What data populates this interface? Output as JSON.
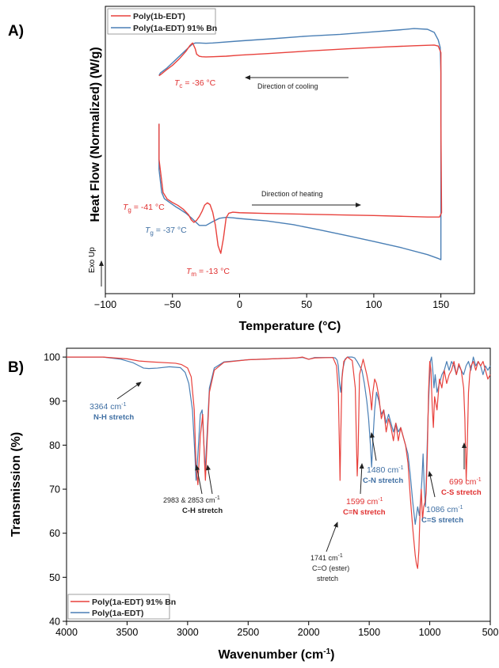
{
  "colors": {
    "red": "#e8413c",
    "blue": "#4a7fb5",
    "axis": "#000000"
  },
  "chart_data": [
    {
      "panel_label": "A)",
      "type": "line",
      "xlabel": "Temperature (°C)",
      "ylabel": "Heat Flow (Normalized) (W/g)",
      "exo_label": "Exo Up",
      "xlim": [
        -100,
        175
      ],
      "ylim": [
        0,
        1
      ],
      "xticks": [
        -100,
        -50,
        0,
        50,
        100,
        150
      ],
      "yticks_shown": false,
      "legend": {
        "placement": "top-left",
        "entries": [
          "Poly(1b-EDT)",
          "Poly(1a-EDT) 91% Bn"
        ]
      },
      "series": [
        {
          "name": "Poly(1b-EDT)",
          "color": "red",
          "x": [
            -60,
            -58,
            -55,
            -50,
            -45,
            -40,
            -37,
            -35,
            -33,
            -32,
            -30,
            -28,
            -25,
            -20,
            -10,
            0,
            20,
            50,
            80,
            110,
            130,
            145,
            148,
            150,
            150,
            150.5,
            149,
            140,
            120,
            100,
            80,
            50,
            20,
            0,
            -5,
            -8,
            -10,
            -12,
            -14,
            -16,
            -18,
            -20,
            -22,
            -24,
            -26,
            -28,
            -30,
            -32,
            -34,
            -36,
            -38,
            -42,
            -46,
            -50,
            -54,
            -57,
            -60,
            -60
          ],
          "y": [
            0.789,
            0.797,
            0.81,
            0.83,
            0.855,
            0.885,
            0.908,
            0.918,
            0.895,
            0.874,
            0.866,
            0.864,
            0.863,
            0.864,
            0.866,
            0.87,
            0.876,
            0.886,
            0.895,
            0.903,
            0.907,
            0.91,
            0.906,
            0.88,
            0.6,
            0.25,
            0.233,
            0.233,
            0.236,
            0.239,
            0.241,
            0.244,
            0.247,
            0.25,
            0.252,
            0.248,
            0.23,
            0.15,
            0.09,
            0.12,
            0.2,
            0.252,
            0.282,
            0.289,
            0.28,
            0.255,
            0.235,
            0.22,
            0.212,
            0.222,
            0.242,
            0.264,
            0.279,
            0.29,
            0.304,
            0.33,
            0.46,
            0.6
          ]
        },
        {
          "name": "Poly(1a-EDT) 91% Bn",
          "color": "blue",
          "x": [
            -60,
            -59,
            -57,
            -54,
            -50,
            -46,
            -42,
            -38,
            -35,
            -33,
            -30,
            -25,
            -20,
            0,
            25,
            50,
            75,
            100,
            120,
            130,
            140,
            145,
            148,
            149.5,
            150,
            150,
            150,
            148,
            140,
            120,
            100,
            80,
            60,
            40,
            20,
            0,
            -5,
            -10,
            -15,
            -20,
            -25,
            -30,
            -33,
            -36,
            -40,
            -44,
            -48,
            -52,
            -56,
            -58,
            -60,
            -60
          ],
          "y": [
            0.79,
            0.8,
            0.808,
            0.82,
            0.84,
            0.86,
            0.88,
            0.9,
            0.914,
            0.918,
            0.918,
            0.917,
            0.918,
            0.926,
            0.935,
            0.945,
            0.952,
            0.962,
            0.97,
            0.975,
            0.972,
            0.96,
            0.93,
            0.9,
            0.8,
            0.4,
            0.065,
            0.07,
            0.085,
            0.113,
            0.137,
            0.16,
            0.182,
            0.203,
            0.218,
            0.227,
            0.23,
            0.232,
            0.228,
            0.215,
            0.2,
            0.2,
            0.215,
            0.23,
            0.248,
            0.262,
            0.275,
            0.29,
            0.305,
            0.33,
            0.42,
            0.6
          ]
        }
      ],
      "annotations": [
        {
          "text": "T",
          "sub": "c",
          "suffix": " = -36 °C",
          "color": "red"
        },
        {
          "text": "T",
          "sub": "g",
          "suffix": " = -41 °C",
          "color": "red"
        },
        {
          "text": "T",
          "sub": "g",
          "suffix": " = -37 °C",
          "color": "blue"
        },
        {
          "text": "T",
          "sub": "m",
          "suffix": " = -13 °C",
          "color": "red"
        },
        {
          "text": "Direction of cooling",
          "color": "dark"
        },
        {
          "text": "Direction of heating",
          "color": "dark"
        }
      ]
    },
    {
      "panel_label": "B)",
      "type": "line",
      "xlabel": "Wavenumber (cm-1)",
      "xlabel_main": "Wavenumber (cm",
      "xlabel_sup": "-1",
      "xlabel_end": ")",
      "ylabel": "Transmission (%)",
      "xlim": [
        4000,
        500
      ],
      "ylim": [
        40,
        102
      ],
      "xticks": [
        4000,
        3500,
        3000,
        2500,
        2000,
        1500,
        1000,
        500
      ],
      "yticks": [
        40,
        50,
        60,
        70,
        80,
        90,
        100
      ],
      "legend": {
        "placement": "bottom-left",
        "entries": [
          "Poly(1a-EDT) 91% Bn",
          "Poly(1a-EDT)"
        ]
      },
      "series": [
        {
          "name": "Poly(1a-EDT) 91% Bn",
          "color": "red",
          "x": [
            4000,
            3700,
            3500,
            3400,
            3300,
            3100,
            3050,
            3000,
            2970,
            2945,
            2930,
            2915,
            2895,
            2875,
            2860,
            2853,
            2840,
            2820,
            2780,
            2700,
            2500,
            2300,
            2100,
            2050,
            2000,
            1950,
            1800,
            1770,
            1755,
            1745,
            1741,
            1735,
            1725,
            1710,
            1680,
            1640,
            1615,
            1605,
            1599,
            1592,
            1580,
            1550,
            1520,
            1500,
            1490,
            1480,
            1470,
            1455,
            1440,
            1420,
            1400,
            1380,
            1360,
            1340,
            1320,
            1300,
            1280,
            1260,
            1240,
            1220,
            1200,
            1180,
            1160,
            1140,
            1120,
            1110,
            1100,
            1090,
            1080,
            1070,
            1060,
            1050,
            1040,
            1030,
            1020,
            1010,
            1000,
            990,
            980,
            970,
            960,
            940,
            920,
            900,
            880,
            860,
            840,
            820,
            800,
            780,
            760,
            740,
            720,
            710,
            699,
            690,
            680,
            670,
            660,
            640,
            620,
            600,
            580,
            560,
            540,
            520,
            500
          ],
          "y": [
            100,
            100,
            99.6,
            99.1,
            98.9,
            98.6,
            98.3,
            97.5,
            95.5,
            88,
            75,
            71,
            82,
            87,
            76,
            72,
            80,
            92,
            97,
            98.8,
            99.4,
            99.6,
            99.8,
            100,
            99.5,
            99.8,
            99.9,
            98,
            92,
            78,
            72,
            82,
            95,
            99,
            100,
            99.2,
            93,
            80,
            73,
            78,
            96,
            99.5,
            96,
            93,
            91,
            88,
            92,
            95,
            94,
            91,
            86,
            88,
            83,
            86,
            84,
            81,
            85,
            81,
            84,
            82,
            80,
            76,
            68,
            61,
            55,
            53,
            52,
            56,
            65,
            70,
            63,
            66,
            67,
            69,
            78,
            92,
            99,
            97,
            89,
            84,
            91,
            88,
            95,
            93,
            97,
            94,
            96,
            97,
            99,
            96,
            98.5,
            97,
            93,
            86,
            72,
            80,
            92,
            96,
            98,
            99,
            97,
            99,
            98,
            99,
            97,
            95,
            96
          ]
        },
        {
          "name": "Poly(1a-EDT)",
          "color": "blue",
          "x": [
            4000,
            3700,
            3550,
            3450,
            3400,
            3364,
            3320,
            3250,
            3150,
            3060,
            3020,
            2990,
            2960,
            2940,
            2930,
            2915,
            2895,
            2880,
            2865,
            2855,
            2840,
            2820,
            2780,
            2700,
            2500,
            2300,
            2100,
            2050,
            2000,
            1950,
            1850,
            1800,
            1780,
            1765,
            1755,
            1745,
            1735,
            1720,
            1700,
            1680,
            1660,
            1640,
            1620,
            1600,
            1580,
            1560,
            1540,
            1520,
            1505,
            1490,
            1480,
            1470,
            1455,
            1440,
            1420,
            1400,
            1380,
            1360,
            1340,
            1320,
            1300,
            1280,
            1260,
            1240,
            1220,
            1200,
            1180,
            1160,
            1140,
            1120,
            1100,
            1086,
            1075,
            1065,
            1055,
            1045,
            1035,
            1025,
            1015,
            1005,
            995,
            985,
            975,
            965,
            955,
            940,
            920,
            900,
            880,
            860,
            840,
            820,
            800,
            780,
            760,
            740,
            720,
            700,
            680,
            660,
            640,
            620,
            600,
            580,
            560,
            540,
            520,
            500
          ],
          "y": [
            100,
            100,
            99.5,
            98.7,
            98,
            97.5,
            97.4,
            97.5,
            97.8,
            97.6,
            96.5,
            94,
            88,
            78,
            72,
            78,
            87,
            88,
            80,
            74,
            82,
            93,
            97.5,
            98.9,
            99.4,
            99.6,
            99.8,
            99.9,
            99.5,
            99.9,
            99.9,
            99.9,
            99.8,
            99.3,
            98,
            94,
            92,
            97,
            99.5,
            100,
            100,
            100,
            99.8,
            99,
            98,
            97,
            94,
            90,
            86,
            80,
            75,
            81,
            88,
            92,
            90,
            87,
            88,
            85,
            87,
            85,
            83,
            85,
            83,
            84,
            82,
            80,
            78,
            73,
            67,
            62,
            66,
            64,
            68,
            72,
            78,
            70,
            66,
            76,
            86,
            93,
            99,
            100,
            97,
            93,
            96,
            92,
            94,
            96,
            97,
            99,
            97,
            99,
            98,
            96,
            98,
            97,
            96,
            98,
            99,
            97,
            100,
            98,
            99,
            98,
            96,
            98,
            97,
            98
          ]
        }
      ],
      "annotations": [
        {
          "value": "3364 cm",
          "sup": "-1",
          "desc": "N-H stretch",
          "color": "blue"
        },
        {
          "value": "2983 & 2853 cm",
          "sup": "-1",
          "desc": "C-H stretch",
          "color": "dark"
        },
        {
          "value": "1741 cm",
          "sup": "-1",
          "desc": "C=O (ester)",
          "desc2": "stretch",
          "color": "dark"
        },
        {
          "value": "1599 cm",
          "sup": "-1",
          "desc": "C=N stretch",
          "color": "red"
        },
        {
          "value": "1480 cm",
          "sup": "-1",
          "desc": "C-N stretch",
          "color": "blue"
        },
        {
          "value": "1086 cm",
          "sup": "-1",
          "desc": "C=S stretch",
          "color": "blue"
        },
        {
          "value": "699 cm",
          "sup": "-1",
          "desc": "C-S stretch",
          "color": "red"
        }
      ]
    }
  ]
}
